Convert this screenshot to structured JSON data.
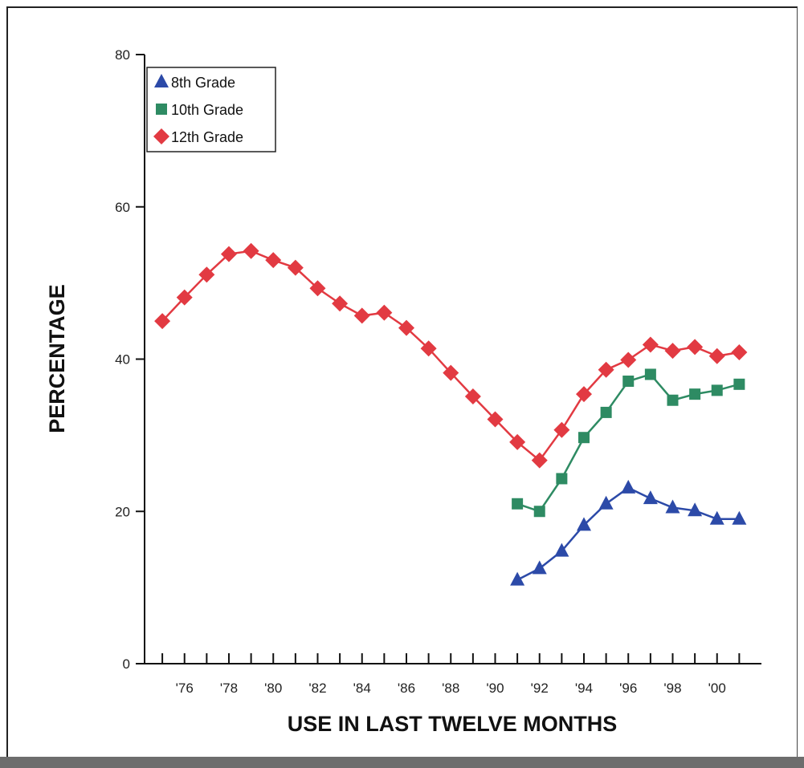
{
  "chart_data": {
    "type": "line",
    "xlabel": "USE IN LAST TWELVE MONTHS",
    "ylabel": "PERCENTAGE",
    "xlim": [
      1974.2,
      2002
    ],
    "ylim": [
      0,
      80
    ],
    "y_ticks": [
      0,
      20,
      40,
      60,
      80
    ],
    "x_ticks": [
      1976,
      1978,
      1980,
      1982,
      1984,
      1986,
      1988,
      1990,
      1992,
      1994,
      1996,
      1998,
      2000
    ],
    "x_tick_labels": [
      "'76",
      "'78",
      "'80",
      "'82",
      "'84",
      "'86",
      "'88",
      "'90",
      "'92",
      "'94",
      "'96",
      "'98",
      "'00"
    ],
    "minor_x_ticks": [
      1975,
      1977,
      1979,
      1981,
      1983,
      1985,
      1987,
      1989,
      1991,
      1993,
      1995,
      1997,
      1999,
      2001
    ],
    "grid": false,
    "legend_position": "top-left",
    "series": [
      {
        "name": "8th Grade",
        "color": "#2c4aa8",
        "marker": "triangle",
        "x": [
          1991,
          1992,
          1993,
          1994,
          1995,
          1996,
          1997,
          1998,
          1999,
          2000,
          2001
        ],
        "values": [
          11.0,
          12.5,
          14.8,
          18.2,
          21.0,
          23.1,
          21.7,
          20.5,
          20.1,
          19.0,
          19.0
        ]
      },
      {
        "name": "10th Grade",
        "color": "#2e8b63",
        "marker": "square",
        "x": [
          1991,
          1992,
          1993,
          1994,
          1995,
          1996,
          1997,
          1998,
          1999,
          2000,
          2001
        ],
        "values": [
          21.0,
          20.0,
          24.3,
          29.7,
          33.0,
          37.1,
          38.0,
          34.6,
          35.4,
          35.9,
          36.7
        ]
      },
      {
        "name": "12th Grade",
        "color": "#e23a42",
        "marker": "diamond",
        "x": [
          1975,
          1976,
          1977,
          1978,
          1979,
          1980,
          1981,
          1982,
          1983,
          1984,
          1985,
          1986,
          1987,
          1988,
          1989,
          1990,
          1991,
          1992,
          1993,
          1994,
          1995,
          1996,
          1997,
          1998,
          1999,
          2000,
          2001
        ],
        "values": [
          45.0,
          48.1,
          51.1,
          53.8,
          54.2,
          53.0,
          52.0,
          49.3,
          47.3,
          45.7,
          46.1,
          44.1,
          41.4,
          38.2,
          35.1,
          32.1,
          29.1,
          26.7,
          30.7,
          35.4,
          38.6,
          39.9,
          41.9,
          41.1,
          41.6,
          40.4,
          40.9
        ]
      }
    ]
  }
}
